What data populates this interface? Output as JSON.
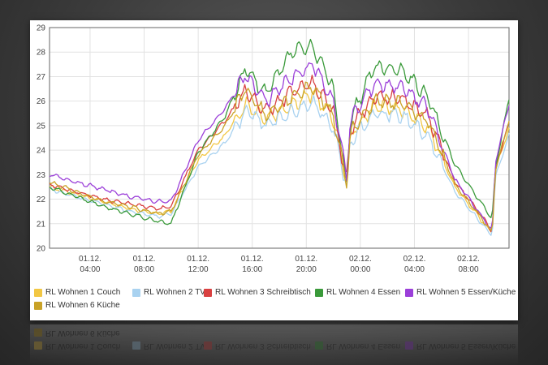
{
  "chart_data": {
    "type": "line",
    "ylim": [
      20,
      29
    ],
    "yticks": [
      20,
      21,
      22,
      23,
      24,
      25,
      26,
      27,
      28,
      29
    ],
    "x_range": [
      "2014-12-01T01:00",
      "2014-12-02T11:00"
    ],
    "x_ticks": [
      {
        "x": "2014-12-01T04:00",
        "label": [
          "01.12.",
          "04:00"
        ]
      },
      {
        "x": "2014-12-01T08:00",
        "label": [
          "01.12.",
          "08:00"
        ]
      },
      {
        "x": "2014-12-01T12:00",
        "label": [
          "01.12.",
          "12:00"
        ]
      },
      {
        "x": "2014-12-01T16:00",
        "label": [
          "01.12.",
          "16:00"
        ]
      },
      {
        "x": "2014-12-01T20:00",
        "label": [
          "01.12.",
          "20:00"
        ]
      },
      {
        "x": "2014-12-02T00:00",
        "label": [
          "02.12.",
          "00:00"
        ]
      },
      {
        "x": "2014-12-02T04:00",
        "label": [
          "02.12.",
          "04:00"
        ]
      },
      {
        "x": "2014-12-02T08:00",
        "label": [
          "02.12.",
          "08:00"
        ]
      }
    ],
    "grid": true,
    "legend_position": "bottom",
    "series": [
      {
        "name": "RL Wohnen 1 Couch",
        "color": "#f2c744",
        "x": [
          "2014-12-01T01:00",
          "2014-12-01T03:00",
          "2014-12-01T05:00",
          "2014-12-01T07:00",
          "2014-12-01T09:00",
          "2014-12-01T10:00",
          "2014-12-01T12:00",
          "2014-12-01T14:00",
          "2014-12-01T15:30",
          "2014-12-01T17:00",
          "2014-12-01T19:00",
          "2014-12-01T20:30",
          "2014-12-01T22:00",
          "2014-12-01T23:00",
          "2014-12-01T23:15",
          "2014-12-02T01:00",
          "2014-12-02T03:00",
          "2014-12-02T05:00",
          "2014-12-02T07:00",
          "2014-12-02T09:00",
          "2014-12-02T09:45",
          "2014-12-02T10:00",
          "2014-12-02T11:00"
        ],
        "y": [
          22.5,
          22.2,
          21.9,
          21.6,
          21.4,
          21.5,
          23.6,
          24.6,
          25.9,
          25.3,
          25.9,
          26.3,
          25.3,
          22.6,
          24.6,
          25.8,
          25.7,
          24.9,
          22.5,
          21.1,
          20.6,
          23.2,
          24.9
        ]
      },
      {
        "name": "RL Wohnen 2 TV",
        "color": "#a9d2f0",
        "x": [
          "2014-12-01T01:00",
          "2014-12-01T03:00",
          "2014-12-01T05:00",
          "2014-12-01T07:00",
          "2014-12-01T09:00",
          "2014-12-01T10:00",
          "2014-12-01T12:00",
          "2014-12-01T14:00",
          "2014-12-01T15:30",
          "2014-12-01T17:00",
          "2014-12-01T19:00",
          "2014-12-01T20:30",
          "2014-12-01T22:00",
          "2014-12-01T23:00",
          "2014-12-01T23:15",
          "2014-12-02T01:00",
          "2014-12-02T03:00",
          "2014-12-02T05:00",
          "2014-12-02T07:00",
          "2014-12-02T09:00",
          "2014-12-02T09:45",
          "2014-12-02T10:00",
          "2014-12-02T11:00"
        ],
        "y": [
          22.4,
          22.1,
          21.8,
          21.5,
          21.3,
          21.4,
          23.3,
          24.3,
          25.6,
          25.0,
          25.6,
          25.9,
          24.9,
          22.4,
          24.4,
          25.5,
          25.4,
          24.6,
          22.3,
          21.0,
          20.5,
          22.9,
          24.6
        ]
      },
      {
        "name": "RL Wohnen 3 Schreibtisch",
        "color": "#d94040",
        "x": [
          "2014-12-01T01:00",
          "2014-12-01T03:00",
          "2014-12-01T05:00",
          "2014-12-01T07:00",
          "2014-12-01T09:00",
          "2014-12-01T10:00",
          "2014-12-01T12:00",
          "2014-12-01T14:00",
          "2014-12-01T15:30",
          "2014-12-01T17:00",
          "2014-12-01T19:00",
          "2014-12-01T20:30",
          "2014-12-01T22:00",
          "2014-12-01T23:00",
          "2014-12-01T23:15",
          "2014-12-02T01:00",
          "2014-12-02T03:00",
          "2014-12-02T05:00",
          "2014-12-02T07:00",
          "2014-12-02T09:00",
          "2014-12-02T09:45",
          "2014-12-02T10:00",
          "2014-12-02T11:00"
        ],
        "y": [
          22.6,
          22.3,
          22.0,
          21.8,
          21.6,
          21.7,
          24.0,
          25.2,
          26.4,
          25.6,
          26.4,
          26.7,
          25.6,
          22.7,
          24.9,
          26.2,
          26.1,
          25.4,
          22.7,
          21.3,
          20.7,
          23.3,
          25.1
        ]
      },
      {
        "name": "RL Wohnen 4 Essen",
        "color": "#3a9a3a",
        "x": [
          "2014-12-01T01:00",
          "2014-12-01T03:00",
          "2014-12-01T05:00",
          "2014-12-01T07:00",
          "2014-12-01T09:00",
          "2014-12-01T10:00",
          "2014-12-01T12:00",
          "2014-12-01T14:00",
          "2014-12-01T15:30",
          "2014-12-01T17:00",
          "2014-12-01T19:00",
          "2014-12-01T20:30",
          "2014-12-01T22:00",
          "2014-12-01T23:00",
          "2014-12-01T23:15",
          "2014-12-02T01:00",
          "2014-12-02T03:00",
          "2014-12-02T05:00",
          "2014-12-02T07:00",
          "2014-12-02T09:00",
          "2014-12-02T09:45",
          "2014-12-02T10:00",
          "2014-12-02T11:00"
        ],
        "y": [
          22.5,
          22.1,
          21.7,
          21.4,
          21.1,
          21.0,
          23.9,
          25.4,
          27.3,
          26.3,
          28.1,
          28.2,
          26.5,
          22.5,
          25.2,
          27.4,
          27.3,
          26.2,
          23.4,
          21.8,
          21.2,
          23.3,
          26.1
        ]
      },
      {
        "name": "RL Wohnen 5 Essen/Küche",
        "color": "#9b3fd9",
        "x": [
          "2014-12-01T01:00",
          "2014-12-01T03:00",
          "2014-12-01T05:00",
          "2014-12-01T07:00",
          "2014-12-01T09:00",
          "2014-12-01T10:00",
          "2014-12-01T12:00",
          "2014-12-01T14:00",
          "2014-12-01T15:30",
          "2014-12-01T17:00",
          "2014-12-01T19:00",
          "2014-12-01T20:30",
          "2014-12-01T22:00",
          "2014-12-01T23:00",
          "2014-12-01T23:15",
          "2014-12-02T01:00",
          "2014-12-02T03:00",
          "2014-12-02T05:00",
          "2014-12-02T07:00",
          "2014-12-02T09:00",
          "2014-12-02T09:45",
          "2014-12-02T10:00",
          "2014-12-02T11:00"
        ],
        "y": [
          23.0,
          22.7,
          22.4,
          22.1,
          21.9,
          21.9,
          24.4,
          25.7,
          27.1,
          26.0,
          27.0,
          27.5,
          26.0,
          22.9,
          25.2,
          26.7,
          26.6,
          25.7,
          22.8,
          21.3,
          20.7,
          23.5,
          25.9
        ]
      },
      {
        "name": "RL Wohnen 6 Küche",
        "color": "#c9a227",
        "x": [
          "2014-12-01T01:00",
          "2014-12-01T03:00",
          "2014-12-01T05:00",
          "2014-12-01T07:00",
          "2014-12-01T09:00",
          "2014-12-01T10:00",
          "2014-12-01T12:00",
          "2014-12-01T14:00",
          "2014-12-01T15:30",
          "2014-12-01T17:00",
          "2014-12-01T19:00",
          "2014-12-01T20:30",
          "2014-12-01T22:00",
          "2014-12-01T23:00",
          "2014-12-01T23:15",
          "2014-12-02T01:00",
          "2014-12-02T03:00",
          "2014-12-02T05:00",
          "2014-12-02T07:00",
          "2014-12-02T09:00",
          "2014-12-02T09:45",
          "2014-12-02T10:00",
          "2014-12-02T11:00"
        ],
        "y": [
          22.7,
          22.3,
          21.9,
          21.7,
          21.4,
          21.5,
          23.8,
          25.0,
          26.5,
          25.4,
          26.2,
          26.6,
          25.4,
          22.6,
          24.7,
          26.0,
          25.9,
          25.2,
          22.6,
          21.2,
          20.6,
          23.2,
          25.2
        ]
      }
    ]
  }
}
